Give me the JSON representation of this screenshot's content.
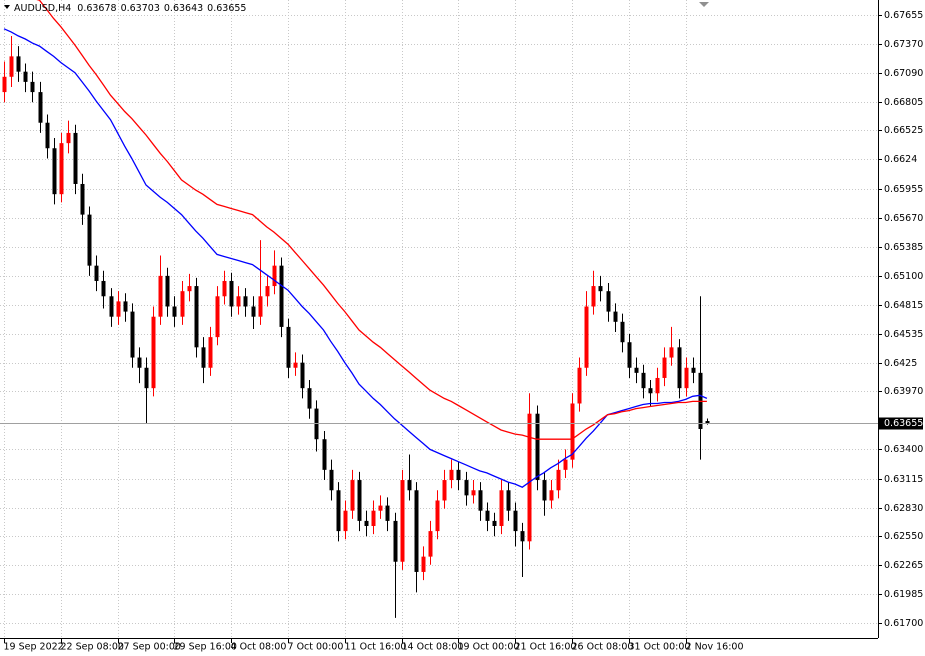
{
  "chart_data": {
    "type": "candlestick",
    "symbol": "AUDUSD,H4",
    "up_color": "#ff0000",
    "down_color": "#000000",
    "grid": true,
    "ylim": [
      0.61553,
      0.67802
    ],
    "yticks": [
      0.67655,
      {
        "value": 0.6737,
        "label": "0.67370"
      },
      {
        "value": 0.6709,
        "label": "0.67090"
      },
      0.66805,
      0.66525,
      0.6624,
      0.65955,
      {
        "value": 0.6567,
        "label": "0.65670"
      },
      0.65385,
      {
        "value": 0.651,
        "label": "0.65100"
      },
      0.64815,
      0.64535,
      0.6425,
      {
        "value": 0.6397,
        "label": "0.63970"
      },
      {
        "value": 0.634,
        "label": "0.63400"
      },
      0.63115,
      {
        "value": 0.6283,
        "label": "0.62830"
      },
      {
        "value": 0.6255,
        "label": "0.62550"
      },
      0.62265,
      0.61985,
      {
        "value": 0.617,
        "label": "0.61700"
      }
    ],
    "categories": [
      "19 Sep 2022",
      null,
      null,
      null,
      null,
      null,
      null,
      null,
      "22 Sep 08:00",
      null,
      null,
      null,
      null,
      null,
      null,
      null,
      "27 Sep 00:00",
      null,
      null,
      null,
      null,
      null,
      null,
      null,
      "29 Sep 16:00",
      null,
      null,
      null,
      null,
      null,
      null,
      null,
      "4 Oct 08:00",
      null,
      null,
      null,
      null,
      null,
      null,
      null,
      "7 Oct 00:00",
      null,
      null,
      null,
      null,
      null,
      null,
      null,
      "11 Oct 16:00",
      null,
      null,
      null,
      null,
      null,
      null,
      null,
      "14 Oct 08:00",
      null,
      null,
      null,
      null,
      null,
      null,
      null,
      "19 Oct 00:00",
      null,
      null,
      null,
      null,
      null,
      null,
      null,
      "21 Oct 16:00",
      null,
      null,
      null,
      null,
      null,
      null,
      null,
      "26 Oct 08:00",
      null,
      null,
      null,
      null,
      null,
      null,
      null,
      "31 Oct 00:00",
      null,
      null,
      null,
      null,
      null,
      null,
      null,
      "2 Nov 16:00",
      null,
      null,
      null
    ],
    "open": [
      0.669,
      0.6705,
      0.6725,
      0.671,
      0.67,
      0.669,
      0.666,
      0.6635,
      0.659,
      0.664,
      0.665,
      0.66,
      0.657,
      0.652,
      0.6505,
      0.649,
      0.647,
      0.6485,
      0.6475,
      0.643,
      0.642,
      0.64,
      0.647,
      0.651,
      0.648,
      0.647,
      0.6495,
      0.65,
      0.644,
      0.642,
      0.645,
      0.649,
      0.6505,
      0.648,
      0.649,
      0.648,
      0.647,
      0.649,
      0.65,
      0.652,
      0.646,
      0.642,
      0.6425,
      0.64,
      0.638,
      0.635,
      0.632,
      0.63,
      0.626,
      0.628,
      0.631,
      0.627,
      0.6265,
      0.628,
      0.6285,
      0.627,
      0.623,
      0.631,
      0.63,
      0.622,
      0.6235,
      0.626,
      0.629,
      0.631,
      0.632,
      0.631,
      0.6295,
      0.63,
      0.628,
      0.627,
      0.6265,
      0.63,
      0.628,
      0.626,
      0.625,
      0.6375,
      0.631,
      0.629,
      0.63,
      0.632,
      0.633,
      0.6385,
      0.642,
      0.648,
      0.65,
      0.6495,
      0.6475,
      0.6465,
      0.6445,
      0.642,
      0.6415,
      0.64,
      0.6395,
      0.641,
      0.643,
      0.644,
      0.64,
      0.642,
      0.6415,
      0.63678
    ],
    "high": [
      0.672,
      0.6745,
      0.6735,
      0.6718,
      0.671,
      0.67,
      0.6668,
      0.6645,
      0.665,
      0.6662,
      0.6658,
      0.661,
      0.6578,
      0.653,
      0.6515,
      0.6498,
      0.6495,
      0.6493,
      0.6483,
      0.644,
      0.643,
      0.648,
      0.653,
      0.6518,
      0.649,
      0.6505,
      0.6512,
      0.6508,
      0.645,
      0.646,
      0.65,
      0.6515,
      0.6513,
      0.65,
      0.6498,
      0.649,
      0.6545,
      0.651,
      0.6535,
      0.6528,
      0.6468,
      0.6435,
      0.6433,
      0.6408,
      0.6388,
      0.6358,
      0.633,
      0.6308,
      0.629,
      0.632,
      0.6318,
      0.628,
      0.629,
      0.6295,
      0.6293,
      0.6278,
      0.632,
      0.6335,
      0.6308,
      0.6245,
      0.627,
      0.63,
      0.632,
      0.633,
      0.6328,
      0.6318,
      0.631,
      0.6308,
      0.6288,
      0.6278,
      0.631,
      0.6308,
      0.6288,
      0.6268,
      0.6395,
      0.6383,
      0.6318,
      0.631,
      0.633,
      0.634,
      0.6395,
      0.643,
      0.6495,
      0.6515,
      0.651,
      0.6503,
      0.6483,
      0.6473,
      0.6453,
      0.643,
      0.6423,
      0.6408,
      0.642,
      0.644,
      0.646,
      0.6448,
      0.643,
      0.643,
      0.649,
      0.63703
    ],
    "low": [
      0.668,
      0.6695,
      0.67,
      0.669,
      0.668,
      0.665,
      0.6625,
      0.658,
      0.6582,
      0.663,
      0.659,
      0.656,
      0.651,
      0.6495,
      0.6478,
      0.646,
      0.6462,
      0.6465,
      0.642,
      0.6405,
      0.6365,
      0.6392,
      0.6462,
      0.647,
      0.646,
      0.6462,
      0.6485,
      0.643,
      0.6405,
      0.6412,
      0.6442,
      0.6482,
      0.647,
      0.6472,
      0.647,
      0.6458,
      0.6462,
      0.648,
      0.6492,
      0.645,
      0.641,
      0.6412,
      0.639,
      0.637,
      0.6338,
      0.631,
      0.629,
      0.625,
      0.6252,
      0.6272,
      0.626,
      0.6255,
      0.6257,
      0.6272,
      0.626,
      0.6175,
      0.6222,
      0.629,
      0.62,
      0.6212,
      0.6227,
      0.6252,
      0.6282,
      0.6302,
      0.63,
      0.6285,
      0.6287,
      0.627,
      0.626,
      0.6255,
      0.6257,
      0.627,
      0.6245,
      0.6215,
      0.6242,
      0.63,
      0.6275,
      0.6282,
      0.6292,
      0.6312,
      0.6322,
      0.6377,
      0.6412,
      0.6472,
      0.6485,
      0.6465,
      0.6455,
      0.6435,
      0.641,
      0.6405,
      0.639,
      0.6382,
      0.6387,
      0.6402,
      0.6422,
      0.639,
      0.6392,
      0.6405,
      0.633,
      0.63643
    ],
    "close": [
      0.6705,
      0.6725,
      0.671,
      0.67,
      0.669,
      0.666,
      0.6635,
      0.659,
      0.664,
      0.665,
      0.66,
      0.657,
      0.652,
      0.6505,
      0.649,
      0.647,
      0.6485,
      0.6475,
      0.643,
      0.642,
      0.64,
      0.647,
      0.651,
      0.648,
      0.647,
      0.6495,
      0.65,
      0.644,
      0.642,
      0.645,
      0.649,
      0.6505,
      0.648,
      0.649,
      0.648,
      0.647,
      0.649,
      0.65,
      0.652,
      0.646,
      0.642,
      0.6425,
      0.64,
      0.638,
      0.635,
      0.632,
      0.63,
      0.626,
      0.628,
      0.631,
      0.627,
      0.6265,
      0.628,
      0.6285,
      0.627,
      0.623,
      0.631,
      0.63,
      0.622,
      0.6235,
      0.626,
      0.629,
      0.631,
      0.632,
      0.631,
      0.6295,
      0.63,
      0.628,
      0.627,
      0.6265,
      0.63,
      0.628,
      0.626,
      0.625,
      0.6375,
      0.631,
      0.629,
      0.63,
      0.632,
      0.633,
      0.6385,
      0.642,
      0.648,
      0.65,
      0.6495,
      0.6475,
      0.6465,
      0.6445,
      0.642,
      0.6415,
      0.64,
      0.6395,
      0.641,
      0.643,
      0.644,
      0.64,
      0.642,
      0.6415,
      0.636,
      0.63655
    ],
    "lines": [
      {
        "color": "#0000ff",
        "values": [
          0.6752,
          0.6749,
          0.6745,
          0.6742,
          0.6738,
          0.6735,
          0.673,
          0.6725,
          0.6719,
          0.6714,
          0.6709,
          0.67,
          0.6691,
          0.6681,
          0.6672,
          0.6663,
          0.665,
          0.6637,
          0.6625,
          0.6612,
          0.6599,
          0.6593,
          0.6587,
          0.6582,
          0.6576,
          0.657,
          0.6562,
          0.6554,
          0.6547,
          0.6539,
          0.6531,
          0.6529,
          0.6527,
          0.6525,
          0.6523,
          0.6521,
          0.6516,
          0.6511,
          0.6506,
          0.6501,
          0.6496,
          0.6488,
          0.648,
          0.6473,
          0.6465,
          0.6457,
          0.6446,
          0.6436,
          0.6425,
          0.6415,
          0.6404,
          0.6397,
          0.639,
          0.6384,
          0.6377,
          0.637,
          0.6364,
          0.6358,
          0.6352,
          0.6346,
          0.634,
          0.6337,
          0.6334,
          0.6331,
          0.6328,
          0.6325,
          0.6322,
          0.6319,
          0.6317,
          0.6314,
          0.6311,
          0.6308,
          0.6306,
          0.6303,
          0.6308,
          0.6313,
          0.6317,
          0.6322,
          0.6326,
          0.6331,
          0.6335,
          0.6343,
          0.6351,
          0.6358,
          0.6366,
          0.6374,
          0.6376,
          0.6378,
          0.638,
          0.6382,
          0.6384,
          0.6385,
          0.6385,
          0.6386,
          0.6386,
          0.6387,
          0.6389,
          0.6392,
          0.6393,
          0.639
        ]
      },
      {
        "color": "#ff0000",
        "values": [
          0.679,
          0.6788,
          0.6786,
          0.6784,
          0.6782,
          0.678,
          0.6771,
          0.6762,
          0.6754,
          0.6745,
          0.6736,
          0.6726,
          0.6716,
          0.6707,
          0.6697,
          0.6687,
          0.6679,
          0.6671,
          0.6664,
          0.6656,
          0.6648,
          0.6639,
          0.663,
          0.6622,
          0.6613,
          0.6604,
          0.6599,
          0.6594,
          0.659,
          0.6585,
          0.658,
          0.6578,
          0.6576,
          0.6574,
          0.6572,
          0.657,
          0.6564,
          0.6558,
          0.6553,
          0.6547,
          0.6541,
          0.6533,
          0.6525,
          0.6517,
          0.6509,
          0.6501,
          0.6492,
          0.6483,
          0.6475,
          0.6466,
          0.6457,
          0.6451,
          0.6445,
          0.644,
          0.6434,
          0.6428,
          0.6422,
          0.6416,
          0.641,
          0.6404,
          0.6398,
          0.6394,
          0.639,
          0.6387,
          0.6383,
          0.6379,
          0.6375,
          0.6371,
          0.6367,
          0.6363,
          0.6359,
          0.6357,
          0.6355,
          0.6354,
          0.6352,
          0.635,
          0.635,
          0.635,
          0.635,
          0.635,
          0.635,
          0.6355,
          0.636,
          0.6364,
          0.6369,
          0.6374,
          0.6375,
          0.6377,
          0.6378,
          0.638,
          0.6381,
          0.6382,
          0.6383,
          0.6384,
          0.6385,
          0.6386,
          0.6386,
          0.6387,
          0.6387,
          0.6387
        ]
      }
    ]
  }
}
